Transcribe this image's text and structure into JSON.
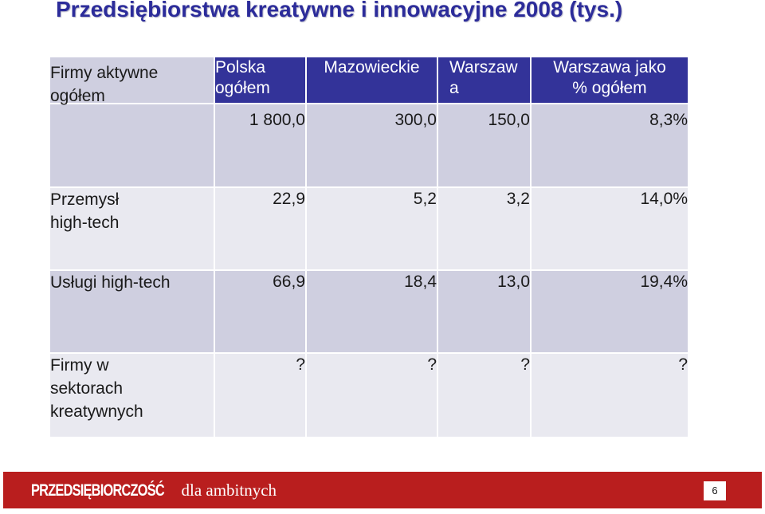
{
  "slide": {
    "title": "Przedsiębiorstwa kreatywne i innowacyjne  2008 (tys.)"
  },
  "table": {
    "columns": [
      "",
      "Polska ogółem",
      "Mazowieckie",
      "Warszawa",
      "Warszawa jako % ogółem"
    ],
    "header_lines": {
      "polska_1": "Polska",
      "polska_2": "ogółem",
      "mazowieckie": "Mazowieckie",
      "warszawa_1": "Warszaw",
      "warszawa_2": "a",
      "proc_1": "Warszawa jako",
      "proc_2": "% ogółem"
    },
    "rows": [
      {
        "label_lines": [
          "Firmy aktywne",
          "ogółem"
        ],
        "values": [
          "1 800,0",
          "300,0",
          "150,0",
          "8,3%"
        ]
      },
      {
        "label_lines": [
          "Przemysł",
          "high-tech"
        ],
        "values": [
          "22,9",
          "5,2",
          "3,2",
          "14,0%"
        ]
      },
      {
        "label_lines": [
          "Usługi high-tech"
        ],
        "values": [
          "66,9",
          "18,4",
          "13,0",
          "19,4%"
        ]
      },
      {
        "label_lines": [
          "Firmy w",
          "sektorach",
          "kreatywnych"
        ],
        "values": [
          "?",
          "?",
          "?",
          "?"
        ]
      }
    ]
  },
  "footer": {
    "brand": "PRZEDSIĘBIORCZOŚĆ",
    "slogan": "dla ambitnych",
    "page_number": "6"
  },
  "colors": {
    "title": "#2c2c9a",
    "header_bg": "#333399",
    "row_dark_bg": "#cfcfe0",
    "row_light_bg": "#e9e9f0",
    "footer_bg": "#b91e1e"
  }
}
